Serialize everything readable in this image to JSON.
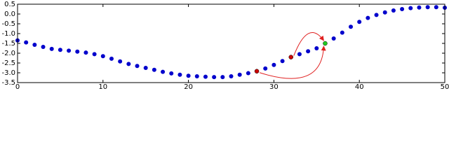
{
  "chart_data": {
    "type": "scatter",
    "x": [
      0,
      1,
      2,
      3,
      4,
      5,
      6,
      7,
      8,
      9,
      10,
      11,
      12,
      13,
      14,
      15,
      16,
      17,
      18,
      19,
      20,
      21,
      22,
      23,
      24,
      25,
      26,
      27,
      28,
      29,
      30,
      31,
      32,
      33,
      34,
      35,
      36,
      37,
      38,
      39,
      40,
      41,
      42,
      43,
      44,
      45,
      46,
      47,
      48,
      49,
      50
    ],
    "series": [
      {
        "color": "#0000cc",
        "values": [
          -1.35,
          -1.45,
          -1.57,
          -1.68,
          -1.78,
          -1.83,
          -1.87,
          -1.92,
          -1.97,
          -2.05,
          -2.15,
          -2.28,
          -2.42,
          -2.55,
          -2.65,
          -2.75,
          -2.85,
          -2.95,
          -3.03,
          -3.1,
          -3.15,
          -3.18,
          -3.2,
          -3.22,
          -3.22,
          -3.18,
          -3.1,
          -3.02,
          -2.92,
          -2.78,
          -2.6,
          -2.4,
          -2.2,
          -2.05,
          -1.9,
          -1.75,
          -1.5,
          -1.25,
          -0.95,
          -0.65,
          -0.4,
          -0.2,
          -0.05,
          0.08,
          0.18,
          0.25,
          0.3,
          0.33,
          0.35,
          0.35,
          0.32
        ],
        "highlight_colors": {
          "28": "#cc0000",
          "32": "#cc0000",
          "36": "#22cc22"
        }
      }
    ],
    "arrows": [
      {
        "from": 28,
        "to": 36,
        "bend": "below"
      },
      {
        "from": 32,
        "to": 36,
        "bend": "above"
      }
    ],
    "arrow_color": "#e02020",
    "xlim": [
      0,
      50
    ],
    "xticks": [
      0,
      10,
      20,
      30,
      40,
      50
    ],
    "ylim": [
      -3.5,
      0.5
    ],
    "yticks": [
      0.5,
      {
        "value": 0,
        "label": "0.0"
      },
      -0.5,
      {
        "value": -1,
        "label": "-1.0"
      },
      -1.5,
      {
        "value": -2,
        "label": "-2.0"
      },
      -2.5,
      {
        "value": -3,
        "label": "-3.0"
      },
      -3.5
    ]
  }
}
